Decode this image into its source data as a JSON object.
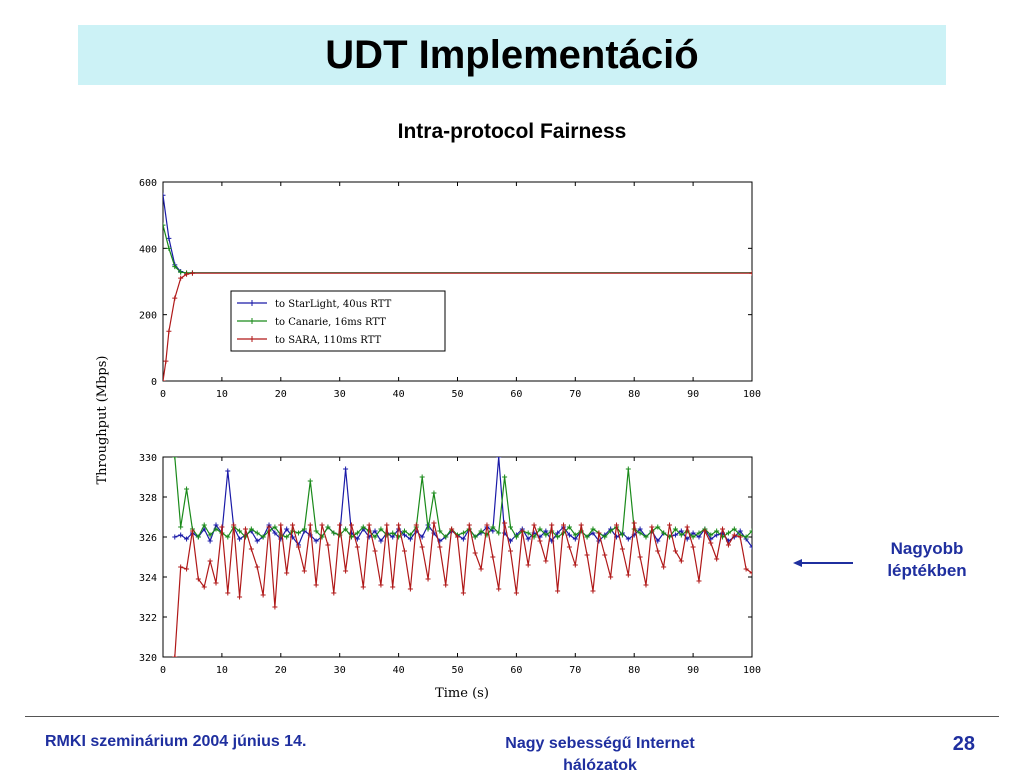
{
  "slide": {
    "title": "UDT Implementáció",
    "subtitle": "Intra-protocol Fairness",
    "note_line1": "Nagyobb",
    "note_line2": "léptékben",
    "footer_left": "RMKI szeminárium 2004 június 14.",
    "footer_center": "Nagy sebességű Internet hálózatok",
    "page_number": "28"
  },
  "chart_data": [
    {
      "type": "line",
      "ylabel": "Throughput (Mbps)",
      "xlim": [
        0,
        100
      ],
      "ylim": [
        0,
        600
      ],
      "x_ticks": [
        "0",
        "10",
        "20",
        "30",
        "40",
        "50",
        "60",
        "70",
        "80",
        "90",
        "100"
      ],
      "y_ticks": [
        "0",
        "200",
        "400",
        "600"
      ],
      "legend_position": "center-left",
      "series": [
        {
          "name": "to StarLight, 40us RTT",
          "color": "#1a1aa8",
          "marker": "plus",
          "x": [
            0,
            1,
            2,
            3,
            4,
            5,
            100
          ],
          "y": [
            560,
            430,
            350,
            330,
            325,
            326,
            326
          ]
        },
        {
          "name": "to Canarie, 16ms RTT",
          "color": "#1a8a1a",
          "marker": "plus",
          "x": [
            0,
            1,
            2,
            3,
            4,
            5,
            100
          ],
          "y": [
            470,
            400,
            345,
            328,
            326,
            326,
            326
          ]
        },
        {
          "name": "to SARA, 110ms RTT",
          "color": "#b01818",
          "marker": "star",
          "x": [
            0,
            0.5,
            1,
            2,
            3,
            4,
            5,
            100
          ],
          "y": [
            0,
            60,
            150,
            250,
            310,
            322,
            325,
            325
          ]
        }
      ]
    },
    {
      "type": "line",
      "xlabel": "Time (s)",
      "xlim": [
        0,
        100
      ],
      "ylim": [
        320,
        330
      ],
      "x_ticks": [
        "0",
        "10",
        "20",
        "30",
        "40",
        "50",
        "60",
        "70",
        "80",
        "90",
        "100"
      ],
      "y_ticks": [
        "320",
        "322",
        "324",
        "326",
        "328",
        "330"
      ],
      "series": [
        {
          "name": "to StarLight, 40us RTT",
          "color": "#1a1aa8",
          "x": [
            2,
            3,
            4,
            5,
            6,
            7,
            8,
            9,
            10,
            11,
            12,
            13,
            14,
            15,
            16,
            17,
            18,
            19,
            20,
            21,
            22,
            23,
            24,
            25,
            26,
            27,
            28,
            29,
            30,
            31,
            32,
            33,
            34,
            35,
            36,
            37,
            38,
            39,
            40,
            41,
            42,
            43,
            44,
            45,
            46,
            47,
            48,
            49,
            50,
            51,
            52,
            53,
            54,
            55,
            56,
            57,
            58,
            59,
            60,
            61,
            62,
            63,
            64,
            65,
            66,
            67,
            68,
            69,
            70,
            71,
            72,
            73,
            74,
            75,
            76,
            77,
            78,
            79,
            80,
            81,
            82,
            83,
            84,
            85,
            86,
            87,
            88,
            89,
            90,
            91,
            92,
            93,
            94,
            95,
            96,
            97,
            98,
            99,
            100
          ],
          "y": [
            326.0,
            326.1,
            325.9,
            326.2,
            326.0,
            326.4,
            325.8,
            326.6,
            326.2,
            329.3,
            326.5,
            325.9,
            326.1,
            326.3,
            325.8,
            326.0,
            326.6,
            326.2,
            325.9,
            326.4,
            326.0,
            325.6,
            326.3,
            326.1,
            325.8,
            326.0,
            326.5,
            326.2,
            326.1,
            329.4,
            326.2,
            325.9,
            326.4,
            326.0,
            326.3,
            325.8,
            326.2,
            326.0,
            326.4,
            326.1,
            325.9,
            326.3,
            326.0,
            326.6,
            326.2,
            325.8,
            326.0,
            326.3,
            326.1,
            325.9,
            326.4,
            326.0,
            326.2,
            326.5,
            326.3,
            330.0,
            326.2,
            325.8,
            326.1,
            326.4,
            325.9,
            326.2,
            326.0,
            326.3,
            325.8,
            326.2,
            326.5,
            326.1,
            325.9,
            326.3,
            326.0,
            326.2,
            325.8,
            326.1,
            326.4,
            326.0,
            326.2,
            325.9,
            326.1,
            326.4,
            326.0,
            326.3,
            325.8,
            326.2,
            326.0,
            326.1,
            326.3,
            325.9,
            326.2,
            326.0,
            326.4,
            325.9,
            326.1,
            326.2,
            325.8,
            326.0,
            326.3,
            325.9,
            325.5
          ]
        },
        {
          "name": "to Canarie, 16ms RTT",
          "color": "#1a8a1a",
          "x": [
            2,
            3,
            4,
            5,
            6,
            7,
            8,
            9,
            10,
            11,
            12,
            13,
            14,
            15,
            16,
            17,
            18,
            19,
            20,
            21,
            22,
            23,
            24,
            25,
            26,
            27,
            28,
            29,
            30,
            31,
            32,
            33,
            34,
            35,
            36,
            37,
            38,
            39,
            40,
            41,
            42,
            43,
            44,
            45,
            46,
            47,
            48,
            49,
            50,
            51,
            52,
            53,
            54,
            55,
            56,
            57,
            58,
            59,
            60,
            61,
            62,
            63,
            64,
            65,
            66,
            67,
            68,
            69,
            70,
            71,
            72,
            73,
            74,
            75,
            76,
            77,
            78,
            79,
            80,
            81,
            82,
            83,
            84,
            85,
            86,
            87,
            88,
            89,
            90,
            91,
            92,
            93,
            94,
            95,
            96,
            97,
            98,
            99,
            100
          ],
          "y": [
            330.0,
            326.5,
            328.4,
            326.4,
            326.0,
            326.6,
            326.1,
            326.4,
            326.2,
            326.0,
            326.5,
            326.3,
            326.0,
            326.4,
            326.2,
            326.0,
            326.3,
            326.5,
            326.1,
            326.0,
            326.3,
            326.2,
            326.4,
            328.8,
            326.3,
            326.0,
            326.5,
            326.2,
            326.1,
            326.4,
            326.0,
            326.2,
            326.5,
            326.3,
            326.0,
            326.4,
            326.1,
            326.2,
            326.0,
            326.3,
            326.1,
            326.5,
            329.0,
            326.4,
            328.2,
            326.3,
            326.0,
            326.4,
            326.1,
            326.2,
            326.4,
            326.0,
            326.3,
            326.1,
            326.5,
            326.2,
            329.0,
            326.5,
            326.0,
            326.3,
            326.2,
            326.0,
            326.4,
            326.1,
            326.3,
            326.0,
            326.2,
            326.5,
            326.1,
            326.3,
            326.0,
            326.4,
            326.2,
            326.0,
            326.3,
            326.5,
            326.1,
            329.4,
            326.4,
            326.2,
            326.0,
            326.3,
            326.5,
            326.2,
            326.0,
            326.4,
            326.1,
            326.3,
            326.0,
            326.2,
            326.4,
            326.1,
            326.3,
            326.0,
            326.2,
            326.4,
            326.1,
            326.0,
            326.3
          ]
        },
        {
          "name": "to SARA, 110ms RTT",
          "color": "#b01818",
          "x": [
            2,
            3,
            4,
            5,
            6,
            7,
            8,
            9,
            10,
            11,
            12,
            13,
            14,
            15,
            16,
            17,
            18,
            19,
            20,
            21,
            22,
            23,
            24,
            25,
            26,
            27,
            28,
            29,
            30,
            31,
            32,
            33,
            34,
            35,
            36,
            37,
            38,
            39,
            40,
            41,
            42,
            43,
            44,
            45,
            46,
            47,
            48,
            49,
            50,
            51,
            52,
            53,
            54,
            55,
            56,
            57,
            58,
            59,
            60,
            61,
            62,
            63,
            64,
            65,
            66,
            67,
            68,
            69,
            70,
            71,
            72,
            73,
            74,
            75,
            76,
            77,
            78,
            79,
            80,
            81,
            82,
            83,
            84,
            85,
            86,
            87,
            88,
            89,
            90,
            91,
            92,
            93,
            94,
            95,
            96,
            97,
            98,
            99,
            100
          ],
          "y": [
            320.0,
            324.5,
            324.4,
            326.3,
            323.9,
            323.5,
            324.8,
            323.7,
            326.5,
            323.2,
            326.6,
            323.0,
            326.4,
            325.4,
            324.5,
            323.1,
            326.5,
            322.5,
            326.6,
            324.2,
            326.6,
            325.5,
            324.3,
            326.6,
            323.6,
            326.6,
            325.6,
            323.2,
            326.6,
            324.3,
            326.6,
            325.5,
            323.5,
            326.6,
            325.3,
            323.6,
            326.6,
            323.5,
            326.6,
            325.3,
            323.4,
            326.6,
            325.5,
            323.9,
            326.7,
            325.5,
            323.6,
            326.4,
            326.0,
            323.2,
            326.6,
            325.2,
            324.4,
            326.6,
            325.0,
            323.4,
            326.7,
            325.3,
            323.2,
            326.3,
            324.6,
            326.6,
            325.8,
            324.8,
            326.6,
            323.3,
            326.6,
            325.5,
            324.6,
            326.6,
            325.1,
            323.3,
            326.2,
            325.1,
            324.0,
            326.6,
            325.4,
            324.1,
            326.7,
            325.0,
            323.6,
            326.5,
            325.3,
            324.5,
            326.6,
            325.3,
            324.8,
            326.5,
            325.5,
            323.8,
            326.3,
            325.7,
            324.9,
            326.4,
            325.6,
            326.1,
            326.0,
            324.4,
            324.2
          ]
        }
      ]
    }
  ]
}
